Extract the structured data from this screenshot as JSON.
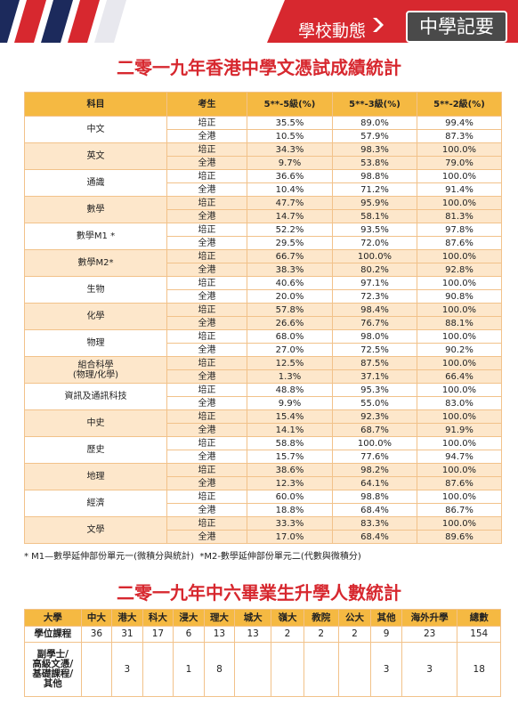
{
  "header": {
    "section": "學校動態",
    "tab": "中學記要"
  },
  "results": {
    "title": "二零一九年香港中學文憑試成績統計",
    "columns": [
      "科目",
      "考生",
      "5**-5級(%)",
      "5**-3級(%)",
      "5**-2級(%)"
    ],
    "subjects": [
      {
        "name": "中文",
        "rows": [
          {
            "group": "培正",
            "values": [
              "35.5%",
              "89.0%",
              "99.4%"
            ]
          },
          {
            "group": "全港",
            "values": [
              "10.5%",
              "57.9%",
              "87.3%"
            ]
          }
        ]
      },
      {
        "name": "英文",
        "rows": [
          {
            "group": "培正",
            "values": [
              "34.3%",
              "98.3%",
              "100.0%"
            ]
          },
          {
            "group": "全港",
            "values": [
              "9.7%",
              "53.8%",
              "79.0%"
            ]
          }
        ]
      },
      {
        "name": "通識",
        "rows": [
          {
            "group": "培正",
            "values": [
              "36.6%",
              "98.8%",
              "100.0%"
            ]
          },
          {
            "group": "全港",
            "values": [
              "10.4%",
              "71.2%",
              "91.4%"
            ]
          }
        ]
      },
      {
        "name": "數學",
        "rows": [
          {
            "group": "培正",
            "values": [
              "47.7%",
              "95.9%",
              "100.0%"
            ]
          },
          {
            "group": "全港",
            "values": [
              "14.7%",
              "58.1%",
              "81.3%"
            ]
          }
        ]
      },
      {
        "name": "數學M1 *",
        "rows": [
          {
            "group": "培正",
            "values": [
              "52.2%",
              "93.5%",
              "97.8%"
            ]
          },
          {
            "group": "全港",
            "values": [
              "29.5%",
              "72.0%",
              "87.6%"
            ]
          }
        ]
      },
      {
        "name": "數學M2*",
        "rows": [
          {
            "group": "培正",
            "values": [
              "66.7%",
              "100.0%",
              "100.0%"
            ]
          },
          {
            "group": "全港",
            "values": [
              "38.3%",
              "80.2%",
              "92.8%"
            ]
          }
        ]
      },
      {
        "name": "生物",
        "rows": [
          {
            "group": "培正",
            "values": [
              "40.6%",
              "97.1%",
              "100.0%"
            ]
          },
          {
            "group": "全港",
            "values": [
              "20.0%",
              "72.3%",
              "90.8%"
            ]
          }
        ]
      },
      {
        "name": "化學",
        "rows": [
          {
            "group": "培正",
            "values": [
              "57.8%",
              "98.4%",
              "100.0%"
            ]
          },
          {
            "group": "全港",
            "values": [
              "26.6%",
              "76.7%",
              "88.1%"
            ]
          }
        ]
      },
      {
        "name": "物理",
        "rows": [
          {
            "group": "培正",
            "values": [
              "68.0%",
              "98.0%",
              "100.0%"
            ]
          },
          {
            "group": "全港",
            "values": [
              "27.0%",
              "72.5%",
              "90.2%"
            ]
          }
        ]
      },
      {
        "name": "組合科學\n(物理/化學)",
        "rows": [
          {
            "group": "培正",
            "values": [
              "12.5%",
              "87.5%",
              "100.0%"
            ]
          },
          {
            "group": "全港",
            "values": [
              "1.3%",
              "37.1%",
              "66.4%"
            ]
          }
        ]
      },
      {
        "name": "資訊及通訊科技",
        "rows": [
          {
            "group": "培正",
            "values": [
              "48.8%",
              "95.3%",
              "100.0%"
            ]
          },
          {
            "group": "全港",
            "values": [
              "9.9%",
              "55.0%",
              "83.0%"
            ]
          }
        ]
      },
      {
        "name": "中史",
        "rows": [
          {
            "group": "培正",
            "values": [
              "15.4%",
              "92.3%",
              "100.0%"
            ]
          },
          {
            "group": "全港",
            "values": [
              "14.1%",
              "68.7%",
              "91.9%"
            ]
          }
        ]
      },
      {
        "name": "歷史",
        "rows": [
          {
            "group": "培正",
            "values": [
              "58.8%",
              "100.0%",
              "100.0%"
            ]
          },
          {
            "group": "全港",
            "values": [
              "15.7%",
              "77.6%",
              "94.7%"
            ]
          }
        ]
      },
      {
        "name": "地理",
        "rows": [
          {
            "group": "培正",
            "values": [
              "38.6%",
              "98.2%",
              "100.0%"
            ]
          },
          {
            "group": "全港",
            "values": [
              "12.3%",
              "64.1%",
              "87.6%"
            ]
          }
        ]
      },
      {
        "name": "經濟",
        "rows": [
          {
            "group": "培正",
            "values": [
              "60.0%",
              "98.8%",
              "100.0%"
            ]
          },
          {
            "group": "全港",
            "values": [
              "18.8%",
              "68.4%",
              "86.7%"
            ]
          }
        ]
      },
      {
        "name": "文學",
        "rows": [
          {
            "group": "培正",
            "values": [
              "33.3%",
              "83.3%",
              "100.0%"
            ]
          },
          {
            "group": "全港",
            "values": [
              "17.0%",
              "68.4%",
              "89.6%"
            ]
          }
        ]
      }
    ],
    "note": "* M1—數學延伸部份單元一(微積分與統計)  *M2-數學延伸部份單元二(代數與微積分)"
  },
  "admissions": {
    "title": "二零一九年中六畢業生升學人數統計",
    "columns": [
      "大學",
      "中大",
      "港大",
      "科大",
      "浸大",
      "理大",
      "城大",
      "嶺大",
      "教院",
      "公大",
      "其他",
      "海外升學",
      "總數"
    ],
    "rows": [
      {
        "label": "學位課程",
        "values": [
          36,
          31,
          17,
          6,
          13,
          13,
          2,
          2,
          2,
          9,
          23,
          154
        ]
      },
      {
        "label": "副學士/\n高級文憑/\n基礎課程/\n其他",
        "values": [
          null,
          3,
          null,
          1,
          8,
          null,
          null,
          null,
          null,
          3,
          3,
          18
        ]
      }
    ]
  }
}
